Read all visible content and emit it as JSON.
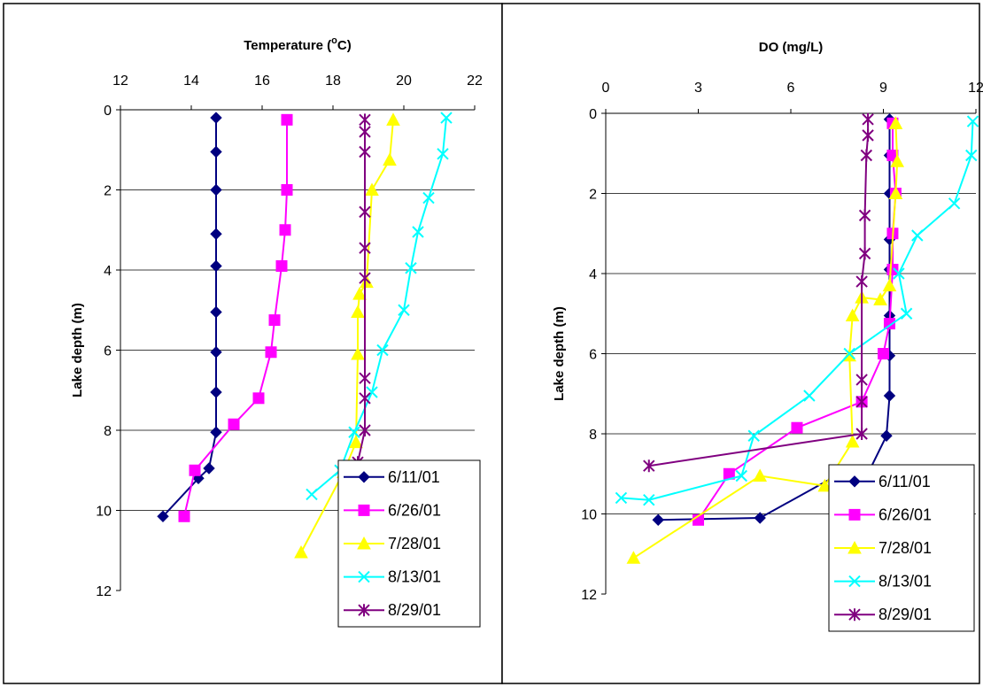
{
  "colors": {
    "6/11/01": "#000080",
    "6/26/01": "#FF00FF",
    "7/28/01": "#FFFF00",
    "8/13/01": "#00FFFF",
    "8/29/01": "#800080"
  },
  "chart_data": [
    {
      "type": "line",
      "title": "",
      "xlabel_main": "Temperature (",
      "xlabel_sup": "o",
      "xlabel_tail": "C)",
      "ylabel": "Lake depth (m)",
      "xlim": [
        12,
        22
      ],
      "ylim": [
        0,
        12
      ],
      "y_inverted": true,
      "x_axis_position": "top",
      "x_ticks": [
        12,
        14,
        16,
        18,
        20,
        22
      ],
      "y_ticks": [
        0,
        2,
        4,
        6,
        8,
        10,
        12
      ],
      "grid": "horizontal",
      "legend_position": "bottom-right",
      "series": [
        {
          "name": "6/11/01",
          "marker": "diamond",
          "points": [
            [
              14.7,
              0.2
            ],
            [
              14.7,
              1.05
            ],
            [
              14.7,
              2.0
            ],
            [
              14.7,
              3.1
            ],
            [
              14.7,
              3.9
            ],
            [
              14.7,
              5.05
            ],
            [
              14.7,
              6.05
            ],
            [
              14.7,
              7.05
            ],
            [
              14.7,
              8.05
            ],
            [
              14.5,
              8.95
            ],
            [
              14.2,
              9.2
            ],
            [
              13.2,
              10.15
            ]
          ]
        },
        {
          "name": "6/26/01",
          "marker": "square",
          "points": [
            [
              16.7,
              0.25
            ],
            [
              16.7,
              2.0
            ],
            [
              16.65,
              3.0
            ],
            [
              16.55,
              3.9
            ],
            [
              16.35,
              5.25
            ],
            [
              16.25,
              6.05
            ],
            [
              15.9,
              7.2
            ],
            [
              15.2,
              7.85
            ],
            [
              14.1,
              9.0
            ],
            [
              13.8,
              10.15
            ]
          ]
        },
        {
          "name": "7/28/01",
          "marker": "triangle",
          "points": [
            [
              19.7,
              0.25
            ],
            [
              19.6,
              1.25
            ],
            [
              19.1,
              2.0
            ],
            [
              18.95,
              4.3
            ],
            [
              18.75,
              4.6
            ],
            [
              18.7,
              5.05
            ],
            [
              18.7,
              6.1
            ],
            [
              18.65,
              8.3
            ],
            [
              18.3,
              9.05
            ],
            [
              17.1,
              11.05
            ]
          ]
        },
        {
          "name": "8/13/01",
          "marker": "x",
          "points": [
            [
              21.2,
              0.2
            ],
            [
              21.1,
              1.1
            ],
            [
              20.7,
              2.2
            ],
            [
              20.4,
              3.05
            ],
            [
              20.2,
              3.95
            ],
            [
              20.0,
              5.0
            ],
            [
              19.4,
              6.0
            ],
            [
              19.1,
              7.05
            ],
            [
              18.6,
              8.05
            ],
            [
              18.2,
              9.0
            ],
            [
              17.4,
              9.6
            ]
          ]
        },
        {
          "name": "8/29/01",
          "marker": "star",
          "points": [
            [
              18.9,
              0.25
            ],
            [
              18.9,
              0.55
            ],
            [
              18.9,
              1.05
            ],
            [
              18.9,
              2.55
            ],
            [
              18.9,
              3.45
            ],
            [
              18.9,
              4.2
            ],
            [
              18.9,
              6.7
            ],
            [
              18.9,
              7.2
            ],
            [
              18.9,
              8.0
            ],
            [
              18.7,
              8.8
            ]
          ]
        }
      ]
    },
    {
      "type": "line",
      "title": "",
      "xlabel_main": "DO (mg/L)",
      "xlabel_sup": "",
      "xlabel_tail": "",
      "ylabel": "Lake depth (m)",
      "xlim": [
        0,
        12
      ],
      "ylim": [
        0,
        12
      ],
      "y_inverted": true,
      "x_axis_position": "top",
      "x_ticks": [
        0,
        3,
        6,
        9,
        12
      ],
      "y_ticks": [
        0,
        2,
        4,
        6,
        8,
        10,
        12
      ],
      "grid": "horizontal",
      "legend_position": "bottom-right",
      "series": [
        {
          "name": "6/11/01",
          "marker": "diamond",
          "points": [
            [
              9.2,
              0.15
            ],
            [
              9.2,
              1.05
            ],
            [
              9.2,
              2.0
            ],
            [
              9.2,
              3.15
            ],
            [
              9.2,
              3.9
            ],
            [
              9.2,
              5.05
            ],
            [
              9.2,
              6.05
            ],
            [
              9.2,
              7.05
            ],
            [
              9.1,
              8.05
            ],
            [
              8.4,
              9.15
            ],
            [
              7.7,
              8.95
            ],
            [
              5.0,
              10.1
            ],
            [
              1.7,
              10.15
            ]
          ]
        },
        {
          "name": "6/26/01",
          "marker": "square",
          "points": [
            [
              9.3,
              0.25
            ],
            [
              9.3,
              1.05
            ],
            [
              9.4,
              2.0
            ],
            [
              9.3,
              3.0
            ],
            [
              9.3,
              3.9
            ],
            [
              9.2,
              5.25
            ],
            [
              9.0,
              6.0
            ],
            [
              8.3,
              7.2
            ],
            [
              6.2,
              7.85
            ],
            [
              4.0,
              9.0
            ],
            [
              3.0,
              10.15
            ]
          ]
        },
        {
          "name": "7/28/01",
          "marker": "triangle",
          "points": [
            [
              9.4,
              0.25
            ],
            [
              9.45,
              1.2
            ],
            [
              9.4,
              2.0
            ],
            [
              9.2,
              4.3
            ],
            [
              8.9,
              4.65
            ],
            [
              8.3,
              4.6
            ],
            [
              8.0,
              5.05
            ],
            [
              7.9,
              6.05
            ],
            [
              8.0,
              8.2
            ],
            [
              7.1,
              9.3
            ],
            [
              5.0,
              9.05
            ],
            [
              0.9,
              11.1
            ]
          ]
        },
        {
          "name": "8/13/01",
          "marker": "x",
          "points": [
            [
              11.9,
              0.2
            ],
            [
              11.85,
              1.05
            ],
            [
              11.3,
              2.25
            ],
            [
              10.1,
              3.05
            ],
            [
              9.5,
              4.0
            ],
            [
              9.75,
              5.0
            ],
            [
              7.9,
              6.0
            ],
            [
              6.6,
              7.05
            ],
            [
              4.8,
              8.05
            ],
            [
              4.4,
              9.05
            ],
            [
              1.4,
              9.65
            ],
            [
              0.5,
              9.6
            ]
          ]
        },
        {
          "name": "8/29/01",
          "marker": "star",
          "points": [
            [
              8.5,
              0.15
            ],
            [
              8.5,
              0.55
            ],
            [
              8.45,
              1.05
            ],
            [
              8.4,
              2.55
            ],
            [
              8.4,
              3.5
            ],
            [
              8.3,
              4.2
            ],
            [
              8.3,
              6.65
            ],
            [
              8.3,
              7.2
            ],
            [
              8.3,
              8.0
            ],
            [
              1.4,
              8.8
            ]
          ]
        }
      ]
    }
  ]
}
